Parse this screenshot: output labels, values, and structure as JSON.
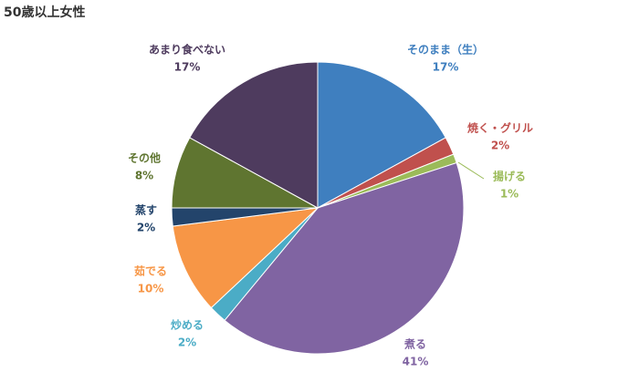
{
  "chart_data": {
    "type": "pie",
    "title": "50歳以上女性",
    "categories": [
      "そのまま（生）",
      "焼く・グリル",
      "揚げる",
      "煮る",
      "炒める",
      "茹でる",
      "蒸す",
      "その他",
      "あまり食べない"
    ],
    "values": [
      17,
      2,
      1,
      41,
      2,
      10,
      2,
      8,
      17
    ],
    "value_labels": [
      "17%",
      "2%",
      "1%",
      "41%",
      "2%",
      "10%",
      "2%",
      "8%",
      "17%"
    ],
    "colors": [
      "#3f7fbf",
      "#c0504d",
      "#9bbb59",
      "#8064a2",
      "#4bacc6",
      "#f79646",
      "#23446b",
      "#5f7530",
      "#4e3b5e"
    ]
  }
}
